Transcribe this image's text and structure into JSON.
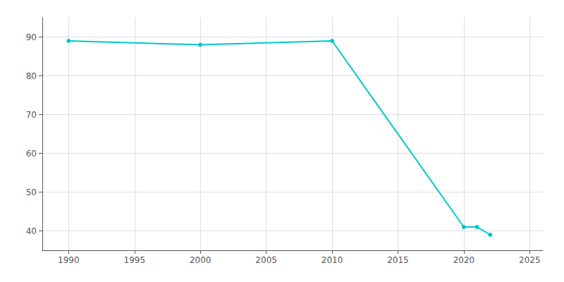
{
  "chart_data": {
    "type": "line",
    "x": [
      1990,
      2000,
      2010,
      2020,
      2021,
      2022
    ],
    "values": [
      89,
      88,
      89,
      41,
      41,
      39
    ],
    "color": "#00c8c8",
    "marker": "circle",
    "xlim": [
      1988,
      2026
    ],
    "ylim": [
      35,
      95
    ],
    "xticks": [
      1990,
      1995,
      2000,
      2005,
      2010,
      2015,
      2020,
      2025
    ],
    "yticks": [
      40,
      50,
      60,
      70,
      80,
      90
    ],
    "grid": true
  }
}
